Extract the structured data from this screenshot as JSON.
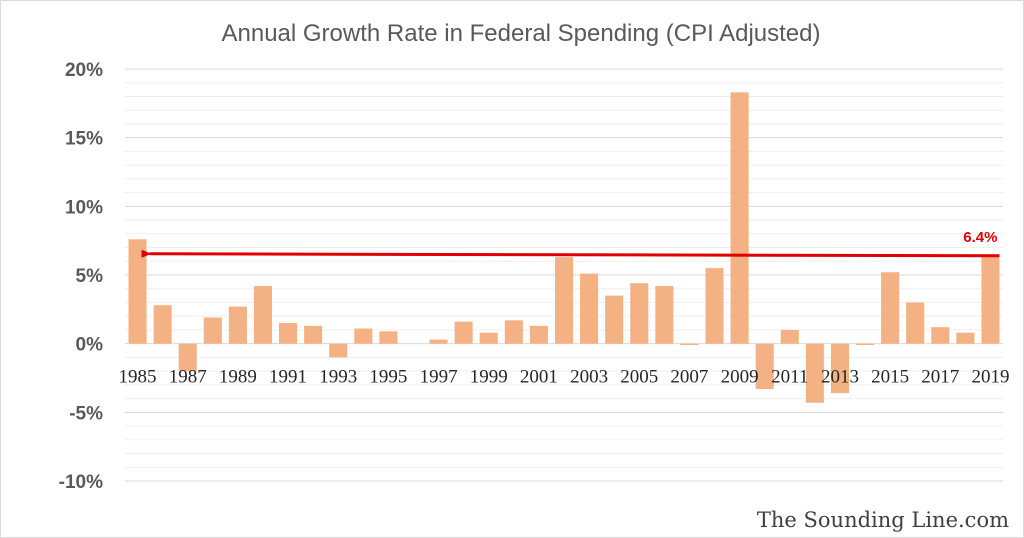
{
  "chart_data": {
    "type": "bar",
    "title": "Annual Growth Rate in Federal Spending (CPI Adjusted)",
    "categories": [
      "1985",
      "1986",
      "1987",
      "1988",
      "1989",
      "1990",
      "1991",
      "1992",
      "1993",
      "1994",
      "1995",
      "1996",
      "1997",
      "1998",
      "1999",
      "2000",
      "2001",
      "2002",
      "2003",
      "2004",
      "2005",
      "2006",
      "2007",
      "2008",
      "2009",
      "2010",
      "2011",
      "2012",
      "2013",
      "2014",
      "2015",
      "2016",
      "2017",
      "2018",
      "2019"
    ],
    "x_tick_labels": [
      "1985",
      "1987",
      "1989",
      "1991",
      "1993",
      "1995",
      "1997",
      "1999",
      "2001",
      "2003",
      "2005",
      "2007",
      "2009",
      "2011",
      "2013",
      "2015",
      "2017",
      "2019"
    ],
    "values": [
      7.6,
      2.8,
      -2.0,
      1.9,
      2.7,
      4.2,
      1.5,
      1.3,
      -1.0,
      1.1,
      0.9,
      0.0,
      0.3,
      1.6,
      0.8,
      1.7,
      1.3,
      6.3,
      5.1,
      3.5,
      4.4,
      4.2,
      -0.1,
      5.5,
      18.3,
      -3.3,
      1.0,
      -4.3,
      -3.6,
      -0.1,
      5.2,
      3.0,
      1.2,
      0.8,
      6.4
    ],
    "ylim": [
      -10,
      20
    ],
    "y_tick_values": [
      -10,
      -5,
      0,
      5,
      10,
      15,
      20
    ],
    "y_tick_labels": [
      "-10%",
      "-5%",
      "0%",
      "5%",
      "10%",
      "15%",
      "20%"
    ],
    "xlabel": "",
    "ylabel": "",
    "grid": true,
    "legend": "none",
    "annotation": {
      "label": "6.4%",
      "value": 6.4,
      "style": "arrow line from last bar back to first bar"
    }
  },
  "watermark": "The Sounding Line.com",
  "colors": {
    "bar": "#f4b183",
    "grid": "#e8e8e8",
    "annotation": "#e00000",
    "frame": "#d9d9d9"
  }
}
